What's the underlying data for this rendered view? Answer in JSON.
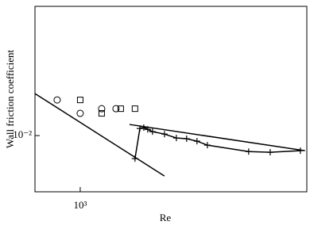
{
  "chart_data": {
    "type": "scatter",
    "x_label": "Re",
    "y_label": "Wall friction coefficient",
    "xlog": true,
    "ylog": true,
    "xlim": [
      564,
      17600
    ],
    "ylim": [
      0.0033,
      0.128
    ],
    "xticks": [
      {
        "value": 1000,
        "label": "10³"
      }
    ],
    "yticks": [
      {
        "value": 0.01,
        "label": "10⁻²"
      }
    ],
    "series": [
      {
        "marker": "circle",
        "line": false,
        "color": "#000000",
        "x": [
          747,
          1000,
          1312,
          1572
        ],
        "values": [
          0.0202,
          0.0155,
          0.017,
          0.017
        ]
      },
      {
        "marker": "square",
        "line": false,
        "color": "#000000",
        "x": [
          1000,
          1312,
          1670,
          2000
        ],
        "values": [
          0.0202,
          0.0155,
          0.017,
          0.017
        ]
      },
      {
        "marker": "none",
        "line": true,
        "color": "#000000",
        "x": [
          564,
          2904
        ],
        "values": [
          0.0229,
          0.0045
        ]
      },
      {
        "marker": "none",
        "line": true,
        "color": "#000000",
        "x": [
          1866,
          17200
        ],
        "values": [
          0.01245,
          0.00743
        ]
      },
      {
        "marker": "plus",
        "line": true,
        "color": "#000000",
        "x": [
          2000,
          2128,
          2235,
          2350,
          2496,
          2904,
          3377,
          3845,
          4383,
          5000,
          8430,
          11070,
          16220
        ],
        "values": [
          0.00635,
          0.0115,
          0.0117,
          0.0113,
          0.0108,
          0.0103,
          0.00954,
          0.0094,
          0.00896,
          0.00828,
          0.0073,
          0.0072,
          0.00743
        ]
      }
    ]
  }
}
